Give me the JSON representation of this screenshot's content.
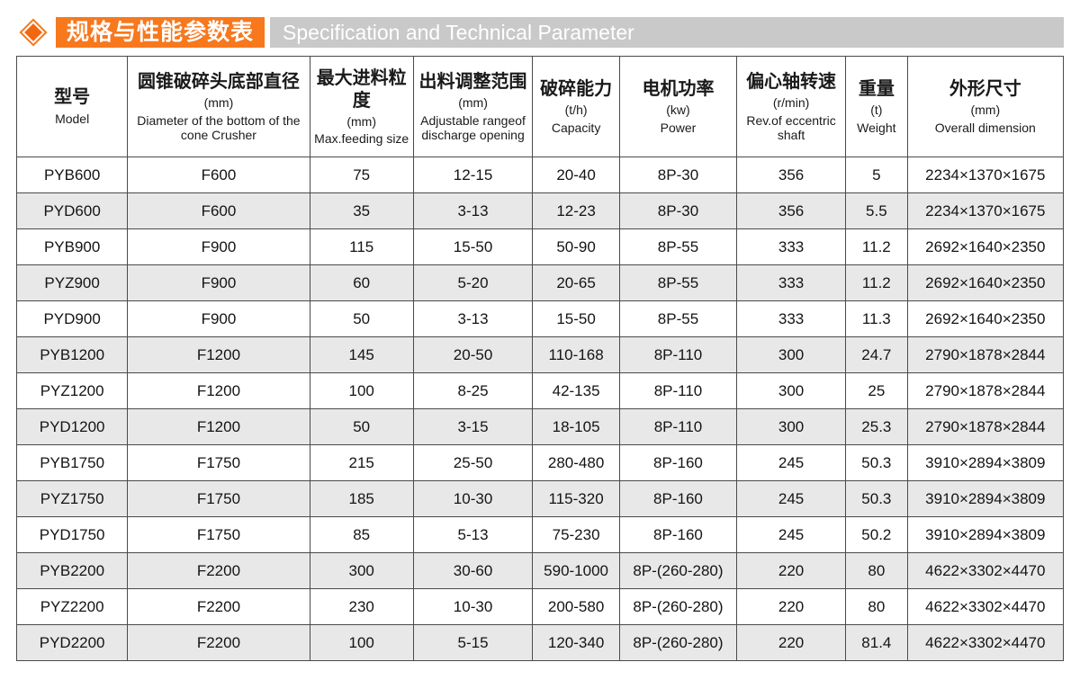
{
  "header": {
    "title_cn": "规格与性能参数表",
    "title_en": "Specification and Technical Parameter",
    "accent_color": "#f7781d",
    "bar_color": "#c9c9c9"
  },
  "table": {
    "columns": [
      {
        "cn": "型号",
        "unit": "",
        "en": "Model"
      },
      {
        "cn": "圆锥破碎头底部直径",
        "unit": "(mm)",
        "en": "Diameter of the bottom of the cone Crusher"
      },
      {
        "cn": "最大进料粒度",
        "unit": "(mm)",
        "en": "Max.feeding size"
      },
      {
        "cn": "出料调整范围",
        "unit": "(mm)",
        "en": "Adjustable rangeof discharge opening"
      },
      {
        "cn": "破碎能力",
        "unit": "(t/h)",
        "en": "Capacity"
      },
      {
        "cn": "电机功率",
        "unit": "(kw)",
        "en": "Power"
      },
      {
        "cn": "偏心轴转速",
        "unit": "(r/min)",
        "en": "Rev.of eccentric shaft"
      },
      {
        "cn": "重量",
        "unit": "(t)",
        "en": "Weight"
      },
      {
        "cn": "外形尺寸",
        "unit": "(mm)",
        "en": "Overall dimension"
      }
    ],
    "rows": [
      [
        "PYB600",
        "F600",
        "75",
        "12-15",
        "20-40",
        "8P-30",
        "356",
        "5",
        "2234×1370×1675"
      ],
      [
        "PYD600",
        "F600",
        "35",
        "3-13",
        "12-23",
        "8P-30",
        "356",
        "5.5",
        "2234×1370×1675"
      ],
      [
        "PYB900",
        "F900",
        "115",
        "15-50",
        "50-90",
        "8P-55",
        "333",
        "11.2",
        "2692×1640×2350"
      ],
      [
        "PYZ900",
        "F900",
        "60",
        "5-20",
        "20-65",
        "8P-55",
        "333",
        "11.2",
        "2692×1640×2350"
      ],
      [
        "PYD900",
        "F900",
        "50",
        "3-13",
        "15-50",
        "8P-55",
        "333",
        "11.3",
        "2692×1640×2350"
      ],
      [
        "PYB1200",
        "F1200",
        "145",
        "20-50",
        "110-168",
        "8P-110",
        "300",
        "24.7",
        "2790×1878×2844"
      ],
      [
        "PYZ1200",
        "F1200",
        "100",
        "8-25",
        "42-135",
        "8P-110",
        "300",
        "25",
        "2790×1878×2844"
      ],
      [
        "PYD1200",
        "F1200",
        "50",
        "3-15",
        "18-105",
        "8P-110",
        "300",
        "25.3",
        "2790×1878×2844"
      ],
      [
        "PYB1750",
        "F1750",
        "215",
        "25-50",
        "280-480",
        "8P-160",
        "245",
        "50.3",
        "3910×2894×3809"
      ],
      [
        "PYZ1750",
        "F1750",
        "185",
        "10-30",
        "115-320",
        "8P-160",
        "245",
        "50.3",
        "3910×2894×3809"
      ],
      [
        "PYD1750",
        "F1750",
        "85",
        "5-13",
        "75-230",
        "8P-160",
        "245",
        "50.2",
        "3910×2894×3809"
      ],
      [
        "PYB2200",
        "F2200",
        "300",
        "30-60",
        "590-1000",
        "8P-(260-280)",
        "220",
        "80",
        "4622×3302×4470"
      ],
      [
        "PYZ2200",
        "F2200",
        "230",
        "10-30",
        "200-580",
        "8P-(260-280)",
        "220",
        "80",
        "4622×3302×4470"
      ],
      [
        "PYD2200",
        "F2200",
        "100",
        "5-15",
        "120-340",
        "8P-(260-280)",
        "220",
        "81.4",
        "4622×3302×4470"
      ]
    ]
  }
}
